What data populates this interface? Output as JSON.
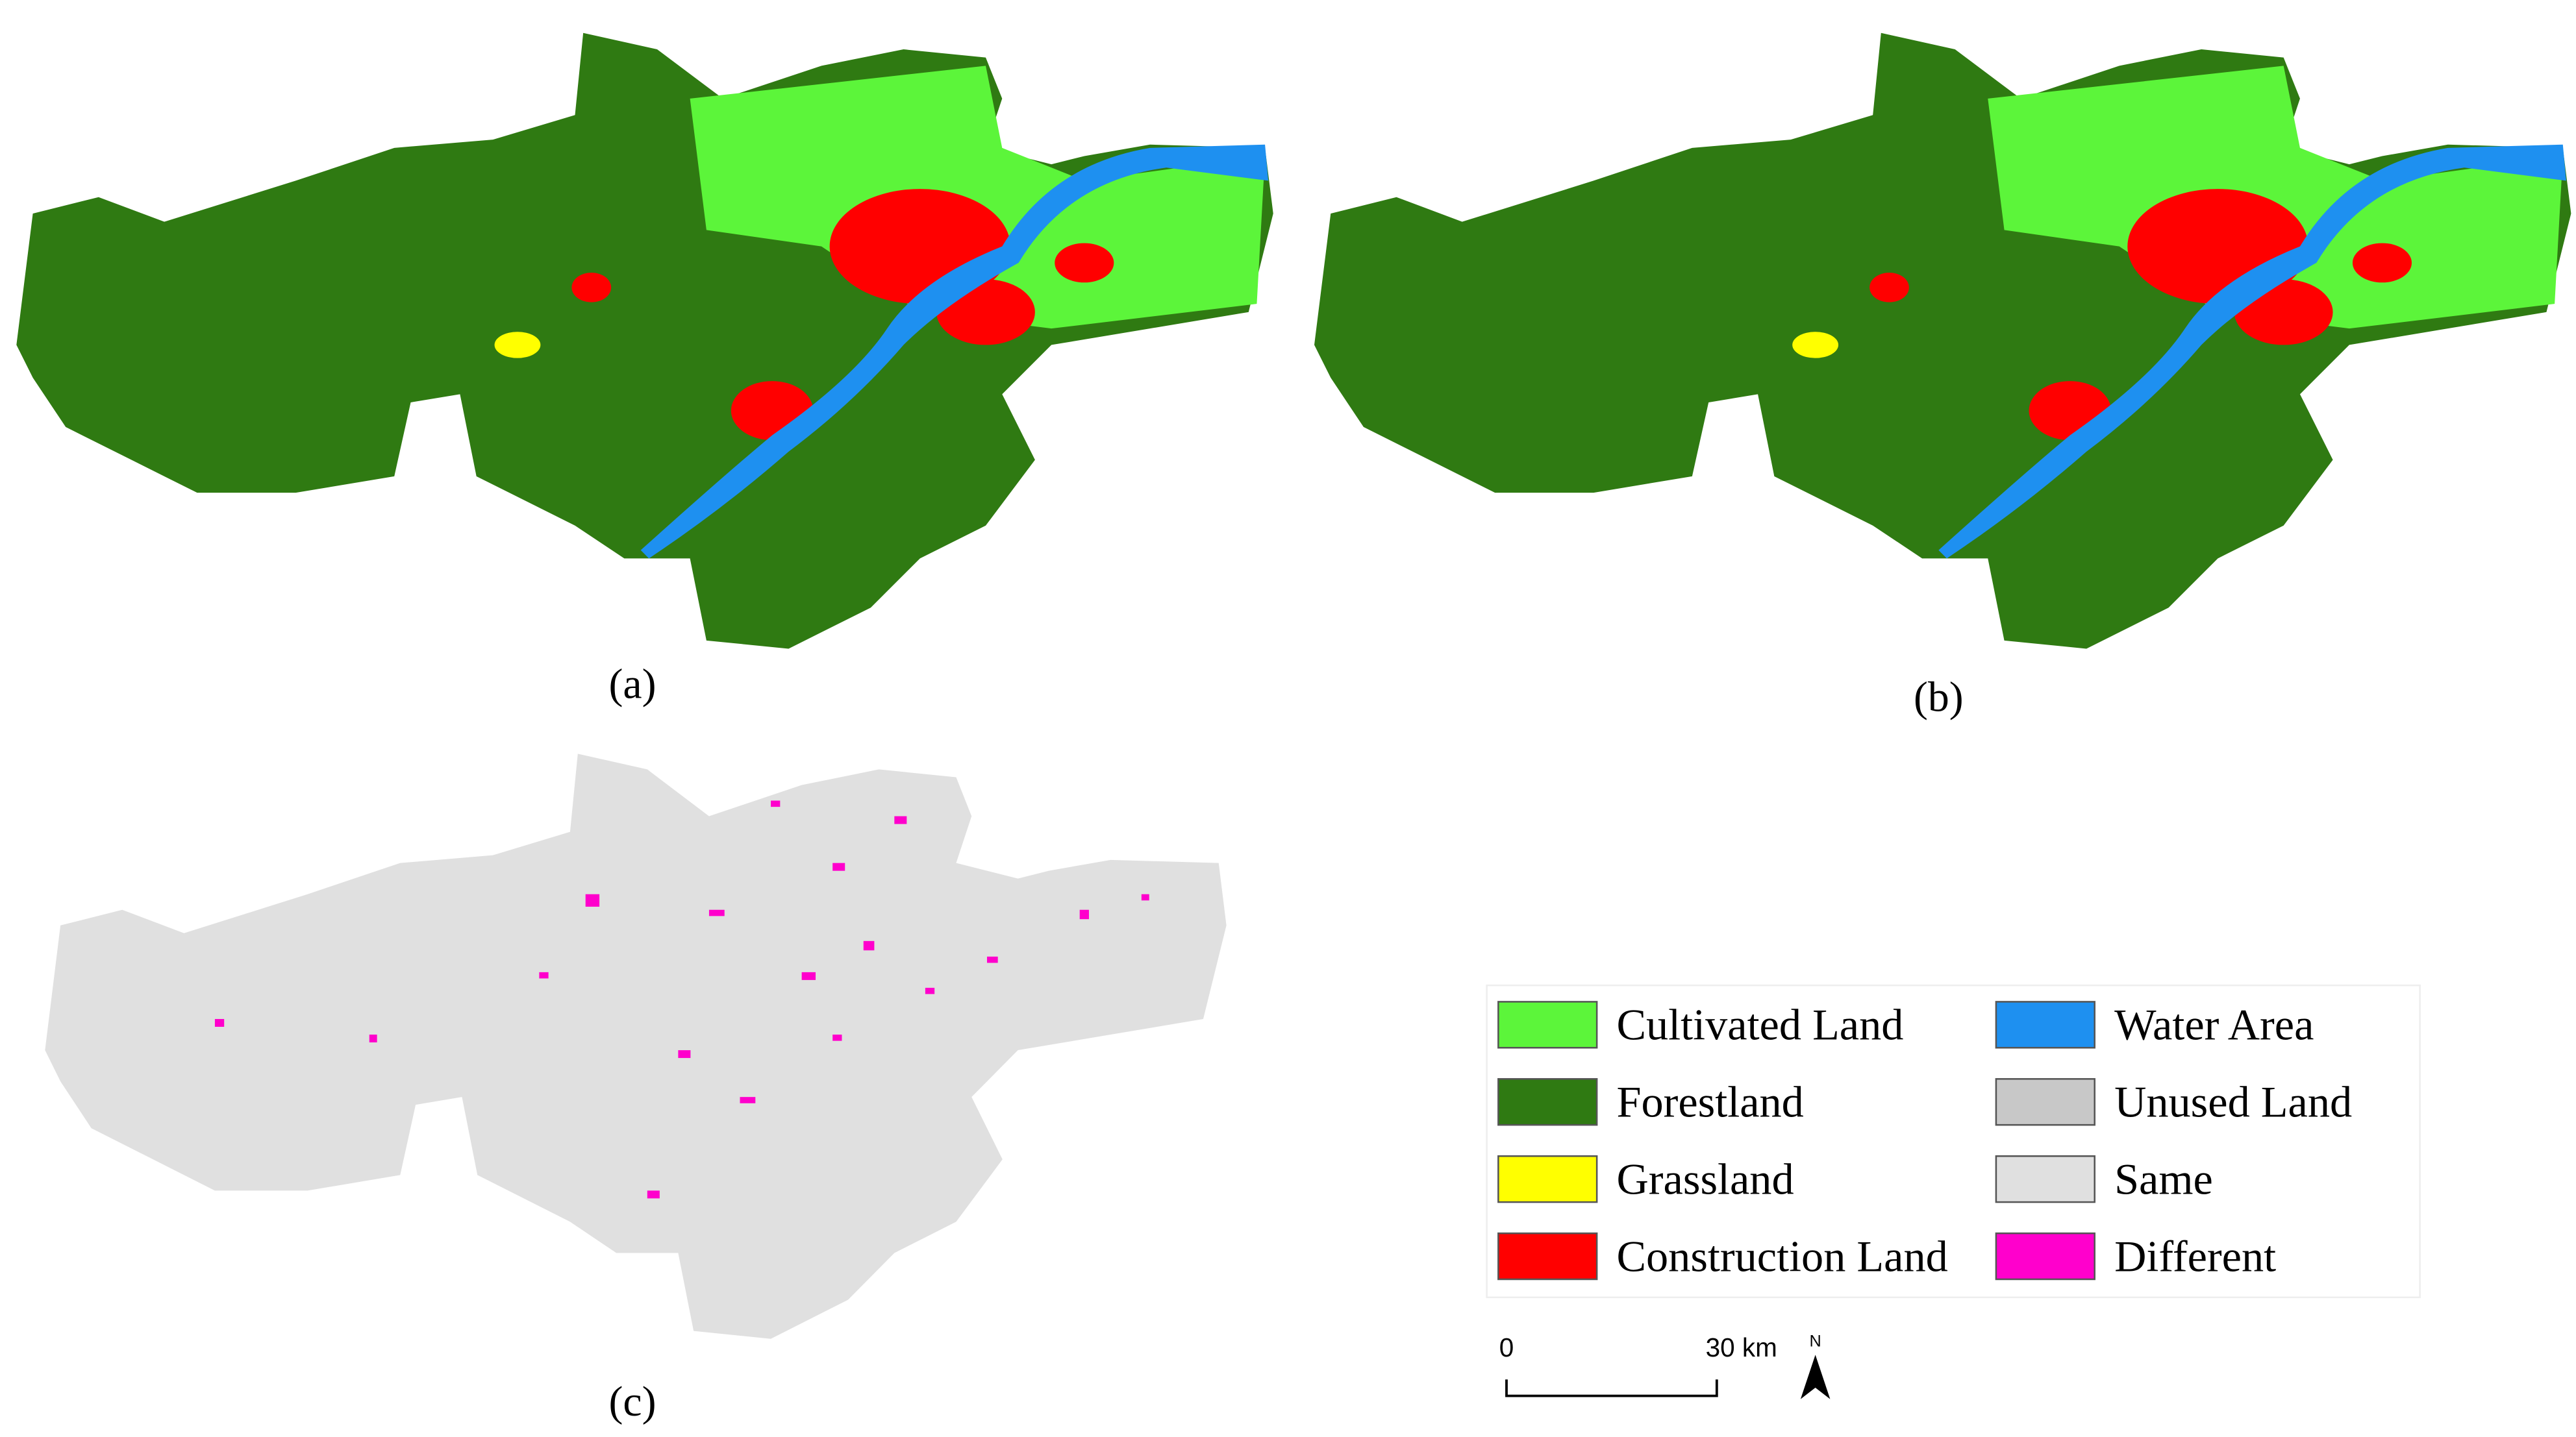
{
  "panels": [
    {
      "label": "(a)"
    },
    {
      "label": "(b)"
    },
    {
      "label": "(c)"
    }
  ],
  "legend": {
    "items": [
      {
        "label": "Cultivated Land",
        "color": "#5cf53a"
      },
      {
        "label": "Forestland",
        "color": "#2f7a12"
      },
      {
        "label": "Grassland",
        "color": "#ffff00"
      },
      {
        "label": "Construction Land",
        "color": "#ff0000"
      },
      {
        "label": "Water Area",
        "color": "#1e90f0"
      },
      {
        "label": "Unused Land",
        "color": "#c8c8c8"
      },
      {
        "label": "Same",
        "color": "#e0e0e0"
      },
      {
        "label": "Different",
        "color": "#ff00cc"
      }
    ]
  },
  "scale_bar": {
    "start": "0",
    "end": "30 km",
    "north": "N"
  }
}
